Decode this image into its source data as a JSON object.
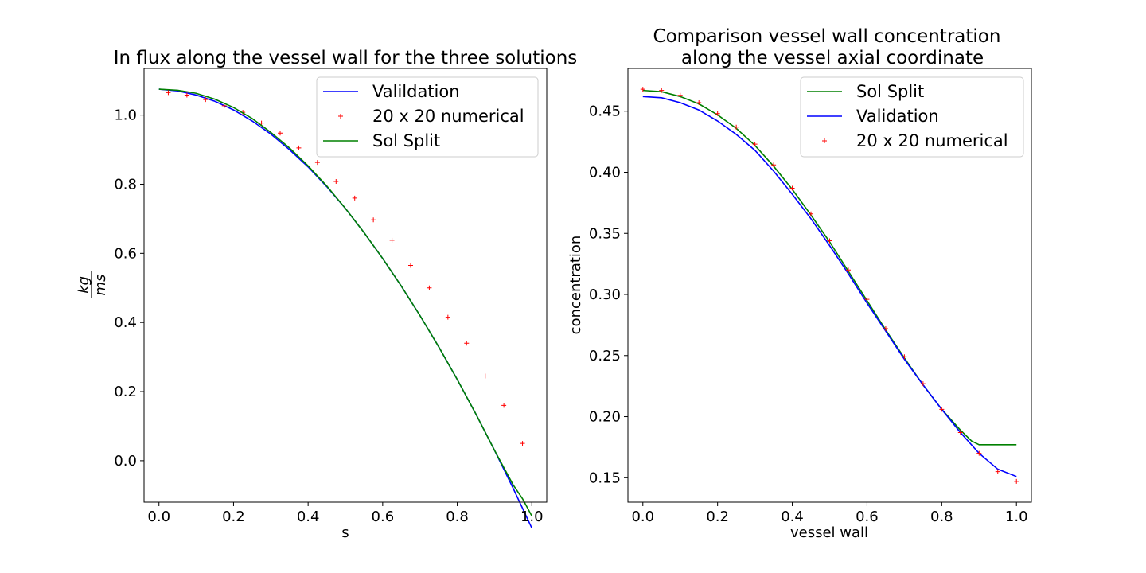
{
  "chart_data": [
    {
      "type": "line",
      "title": "In flux along the vessel wall for the three solutions",
      "xlabel": "s",
      "ylabel_num": "kg",
      "ylabel_den": "ms",
      "xlim": [
        -0.04,
        1.04
      ],
      "ylim": [
        -0.12,
        1.135
      ],
      "xticks": [
        0.0,
        0.2,
        0.4,
        0.6,
        0.8,
        1.0
      ],
      "xtick_labels": [
        "0.0",
        "0.2",
        "0.4",
        "0.6",
        "0.8",
        "1.0"
      ],
      "yticks": [
        0.0,
        0.2,
        0.4,
        0.6,
        0.8,
        1.0
      ],
      "ytick_labels": [
        "0.0",
        "0.2",
        "0.4",
        "0.6",
        "0.8",
        "1.0"
      ],
      "grid": false,
      "legend_position": "top-right",
      "series": [
        {
          "name": "Valildation",
          "style": "line",
          "color": "#0000ff",
          "x": [
            0.0,
            0.05,
            0.1,
            0.15,
            0.2,
            0.25,
            0.3,
            0.35,
            0.4,
            0.45,
            0.5,
            0.55,
            0.6,
            0.65,
            0.7,
            0.75,
            0.8,
            0.85,
            0.9,
            0.95,
            1.0
          ],
          "y": [
            1.075,
            1.07,
            1.058,
            1.04,
            1.015,
            0.983,
            0.945,
            0.9,
            0.85,
            0.793,
            0.73,
            0.66,
            0.585,
            0.505,
            0.42,
            0.33,
            0.235,
            0.135,
            0.03,
            -0.08,
            -0.195
          ]
        },
        {
          "name": "20 x 20 numerical",
          "style": "marker",
          "color": "#ff0000",
          "x": [
            0.025,
            0.075,
            0.125,
            0.175,
            0.225,
            0.275,
            0.325,
            0.375,
            0.425,
            0.475,
            0.525,
            0.575,
            0.625,
            0.675,
            0.725,
            0.775,
            0.825,
            0.875,
            0.925,
            0.975
          ],
          "y": [
            1.065,
            1.058,
            1.045,
            1.027,
            1.008,
            0.977,
            0.948,
            0.905,
            0.863,
            0.808,
            0.76,
            0.697,
            0.638,
            0.565,
            0.5,
            0.415,
            0.34,
            0.245,
            0.16,
            0.05
          ]
        },
        {
          "name": "Sol Split",
          "style": "line",
          "color": "#008000",
          "x": [
            0.0,
            0.05,
            0.1,
            0.15,
            0.2,
            0.25,
            0.3,
            0.35,
            0.4,
            0.45,
            0.5,
            0.55,
            0.6,
            0.65,
            0.7,
            0.75,
            0.8,
            0.85,
            0.9,
            0.925,
            0.95,
            0.975,
            1.0
          ],
          "y": [
            1.075,
            1.072,
            1.063,
            1.046,
            1.022,
            0.99,
            0.95,
            0.905,
            0.853,
            0.795,
            0.73,
            0.66,
            0.585,
            0.505,
            0.42,
            0.33,
            0.235,
            0.135,
            0.03,
            -0.02,
            -0.07,
            -0.11,
            -0.16
          ]
        }
      ]
    },
    {
      "type": "line",
      "title_line1": "Comparison vessel wall concentration",
      "title_line2": "along the vessel axial coordinate",
      "xlabel": "vessel wall",
      "ylabel": "concentration",
      "xlim": [
        -0.04,
        1.04
      ],
      "ylim": [
        0.13,
        0.485
      ],
      "xticks": [
        0.0,
        0.2,
        0.4,
        0.6,
        0.8,
        1.0
      ],
      "xtick_labels": [
        "0.0",
        "0.2",
        "0.4",
        "0.6",
        "0.8",
        "1.0"
      ],
      "yticks": [
        0.15,
        0.2,
        0.25,
        0.3,
        0.35,
        0.4,
        0.45
      ],
      "ytick_labels": [
        "0.15",
        "0.20",
        "0.25",
        "0.30",
        "0.35",
        "0.40",
        "0.45"
      ],
      "grid": false,
      "legend_position": "top-right",
      "series": [
        {
          "name": "Sol Split",
          "style": "line",
          "color": "#008000",
          "x": [
            0.0,
            0.05,
            0.1,
            0.15,
            0.2,
            0.25,
            0.3,
            0.35,
            0.4,
            0.45,
            0.5,
            0.55,
            0.6,
            0.65,
            0.7,
            0.75,
            0.8,
            0.85,
            0.88,
            0.9,
            1.0
          ],
          "y": [
            0.467,
            0.466,
            0.462,
            0.456,
            0.447,
            0.436,
            0.422,
            0.405,
            0.386,
            0.365,
            0.343,
            0.319,
            0.295,
            0.271,
            0.248,
            0.226,
            0.206,
            0.189,
            0.18,
            0.177,
            0.177
          ]
        },
        {
          "name": "Validation",
          "style": "line",
          "color": "#0000ff",
          "x": [
            0.0,
            0.05,
            0.1,
            0.15,
            0.2,
            0.25,
            0.3,
            0.35,
            0.4,
            0.45,
            0.5,
            0.55,
            0.6,
            0.65,
            0.7,
            0.75,
            0.8,
            0.85,
            0.9,
            0.95,
            1.0
          ],
          "y": [
            0.462,
            0.461,
            0.457,
            0.451,
            0.442,
            0.431,
            0.418,
            0.401,
            0.382,
            0.362,
            0.34,
            0.317,
            0.293,
            0.27,
            0.247,
            0.226,
            0.206,
            0.187,
            0.17,
            0.157,
            0.151
          ]
        },
        {
          "name": "20 x 20 numerical",
          "style": "marker",
          "color": "#ff0000",
          "x": [
            0.0,
            0.05,
            0.1,
            0.15,
            0.2,
            0.25,
            0.3,
            0.35,
            0.4,
            0.45,
            0.5,
            0.55,
            0.6,
            0.65,
            0.7,
            0.75,
            0.8,
            0.85,
            0.9,
            0.95,
            1.0
          ],
          "y": [
            0.468,
            0.467,
            0.463,
            0.457,
            0.448,
            0.437,
            0.423,
            0.406,
            0.387,
            0.366,
            0.344,
            0.32,
            0.296,
            0.272,
            0.249,
            0.227,
            0.206,
            0.187,
            0.17,
            0.155,
            0.147
          ]
        }
      ]
    }
  ]
}
